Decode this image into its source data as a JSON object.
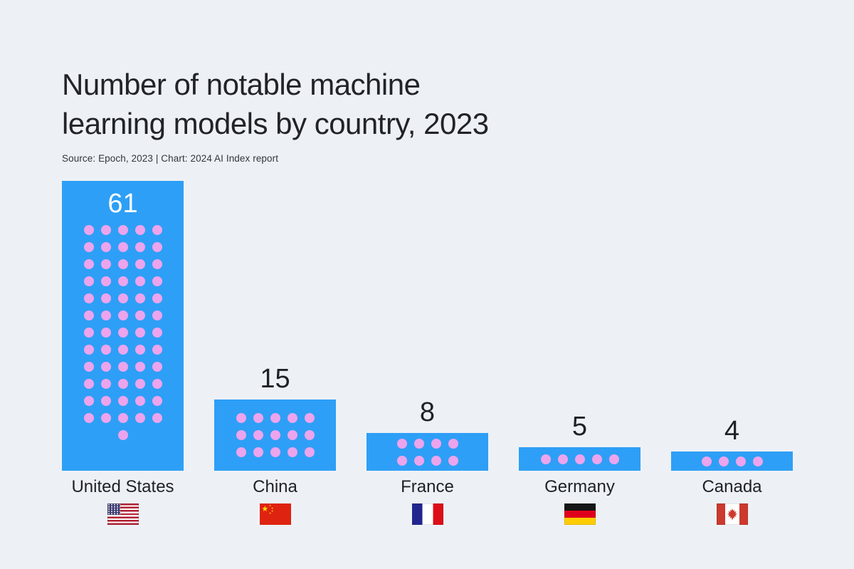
{
  "page": {
    "background_color": "#EDF1F6",
    "text_color": "#1E2126"
  },
  "header": {
    "title_lines": [
      "Number of notable machine",
      "learning models by country, 2023"
    ],
    "source": "Source: Epoch, 2023 | Chart: 2024 AI Index report"
  },
  "chart_data": {
    "type": "bar",
    "title": "Number of notable machine learning models by country, 2023",
    "source": "Source: Epoch, 2023 | Chart: 2024 AI Index report",
    "categories": [
      "United States",
      "China",
      "France",
      "Germany",
      "Canada"
    ],
    "values": [
      61,
      15,
      8,
      5,
      4
    ],
    "xlabel": "",
    "ylabel": "Number of notable machine learning models",
    "ylim": [
      0,
      61
    ],
    "grid": false,
    "legend": "none",
    "bar_color": "#2E9FF6",
    "dot_color": "#ECA4ED",
    "value_label_color_above": "#1E2126",
    "value_label_color_inside": "#FFFFFF",
    "style": "pictogram bars: one pink dot per model inside each blue bar, flag icon under each country label",
    "countries": [
      {
        "label": "United States",
        "value": 61,
        "dots_per_row": 5,
        "value_position": "inside",
        "flag": "us",
        "flag_name": "united-states-flag-icon"
      },
      {
        "label": "China",
        "value": 15,
        "dots_per_row": 5,
        "value_position": "above",
        "flag": "cn",
        "flag_name": "china-flag-icon"
      },
      {
        "label": "France",
        "value": 8,
        "dots_per_row": 4,
        "value_position": "above",
        "flag": "fr",
        "flag_name": "france-flag-icon"
      },
      {
        "label": "Germany",
        "value": 5,
        "dots_per_row": 5,
        "value_position": "above",
        "flag": "de",
        "flag_name": "germany-flag-icon"
      },
      {
        "label": "Canada",
        "value": 4,
        "dots_per_row": 4,
        "value_position": "above",
        "flag": "ca",
        "flag_name": "canada-flag-icon"
      }
    ]
  }
}
